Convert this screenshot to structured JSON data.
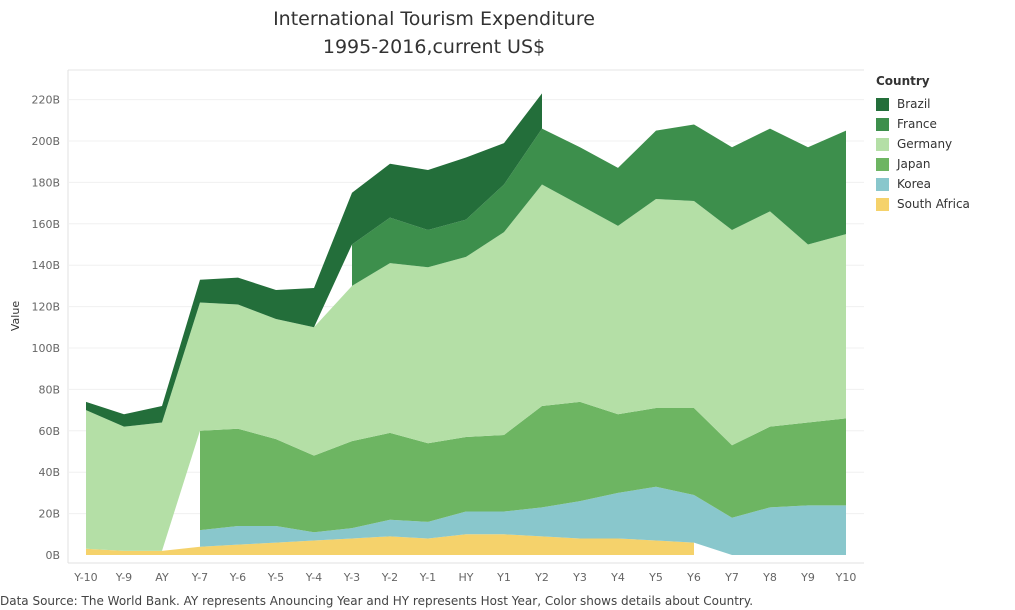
{
  "chart_data": {
    "type": "area",
    "title": "International Tourism Expenditure",
    "subtitle": "1995-2016,current US$",
    "ylabel": "Value",
    "xlabel": "",
    "ylim": [
      0,
      230
    ],
    "y_ticks": [
      0,
      20,
      40,
      60,
      80,
      100,
      120,
      140,
      160,
      180,
      200,
      220
    ],
    "y_tick_labels": [
      "0B",
      "20B",
      "40B",
      "60B",
      "80B",
      "100B",
      "120B",
      "140B",
      "160B",
      "180B",
      "200B",
      "220B"
    ],
    "categories": [
      "Y-10",
      "Y-9",
      "AY",
      "Y-7",
      "Y-6",
      "Y-5",
      "Y-4",
      "Y-3",
      "Y-2",
      "Y-1",
      "HY",
      "Y1",
      "Y2",
      "Y3",
      "Y4",
      "Y5",
      "Y6",
      "Y7",
      "Y8",
      "Y9",
      "Y10"
    ],
    "stacked": true,
    "grid": true,
    "legend_position": "right",
    "legend_title": "Country",
    "series": [
      {
        "name": "South Africa",
        "color": "#f5d26b",
        "values": [
          3,
          2,
          2,
          4,
          5,
          6,
          7,
          8,
          9,
          8,
          10,
          10,
          9,
          8,
          8,
          7,
          6,
          null,
          null,
          null,
          null
        ]
      },
      {
        "name": "Korea",
        "color": "#89c7cc",
        "values": [
          null,
          null,
          null,
          8,
          9,
          8,
          4,
          5,
          8,
          8,
          11,
          11,
          14,
          18,
          22,
          26,
          23,
          18,
          23,
          24,
          24
        ]
      },
      {
        "name": "Japan",
        "color": "#6db562",
        "values": [
          null,
          null,
          null,
          48,
          47,
          42,
          37,
          42,
          42,
          38,
          36,
          37,
          49,
          48,
          38,
          38,
          42,
          35,
          39,
          40,
          42
        ]
      },
      {
        "name": "Germany",
        "color": "#b4dfa6",
        "values": [
          67,
          60,
          62,
          62,
          60,
          58,
          62,
          75,
          82,
          85,
          87,
          98,
          107,
          95,
          91,
          101,
          100,
          104,
          104,
          86,
          89
        ]
      },
      {
        "name": "France",
        "color": "#3d8f4c",
        "values": [
          null,
          null,
          null,
          null,
          null,
          null,
          null,
          20,
          22,
          18,
          18,
          23,
          27,
          28,
          28,
          33,
          37,
          40,
          40,
          47,
          50
        ]
      },
      {
        "name": "Brazil",
        "color": "#236e3a",
        "values": [
          4,
          6,
          8,
          11,
          13,
          14,
          19,
          25,
          26,
          29,
          30,
          20,
          17,
          null,
          null,
          null,
          null,
          null,
          null,
          null,
          null
        ]
      }
    ]
  },
  "legend": {
    "title": "Country",
    "items": [
      "Brazil",
      "France",
      "Germany",
      "Japan",
      "Korea",
      "South Africa"
    ]
  },
  "footer": "Data Source: The World Bank. AY represents Anouncing Year and HY represents Host Year, Color shows details about Country."
}
